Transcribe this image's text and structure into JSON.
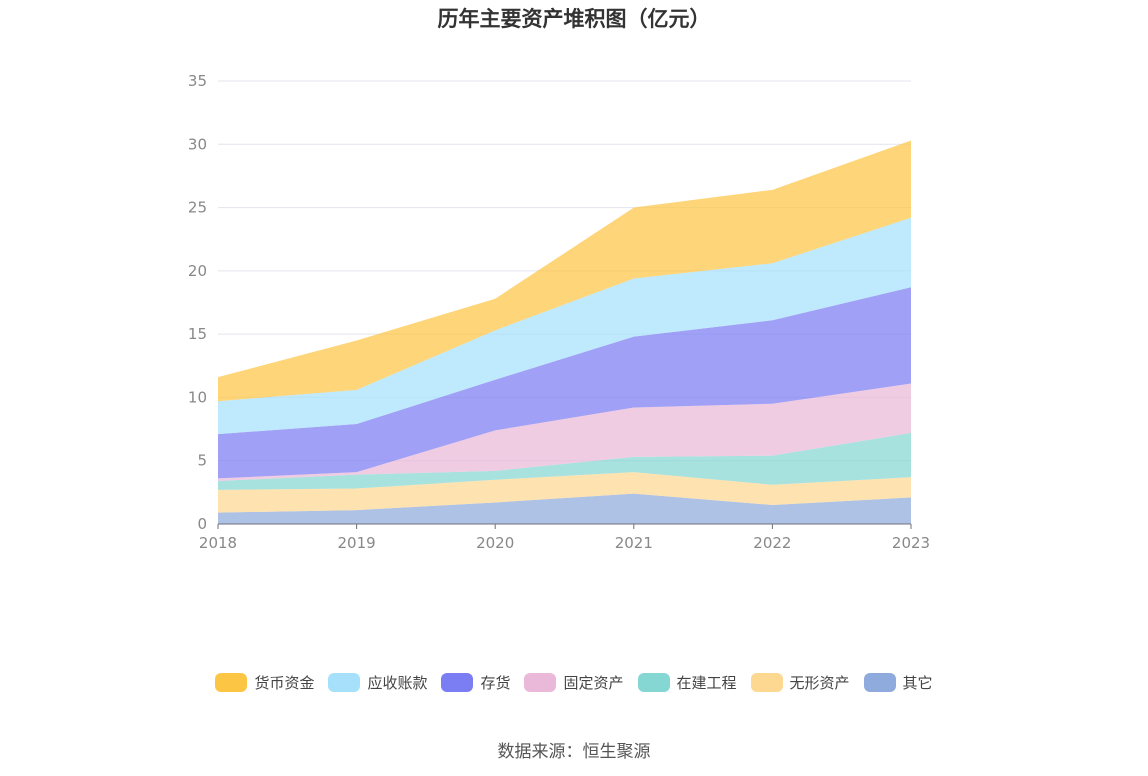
{
  "chart_data": {
    "type": "area",
    "stacked": true,
    "title": "历年主要资产堆积图（亿元）",
    "x": [
      "2018",
      "2019",
      "2020",
      "2021",
      "2022",
      "2023"
    ],
    "ylim": [
      0,
      35
    ],
    "yticks": [
      0,
      5,
      10,
      15,
      20,
      25,
      30,
      35
    ],
    "grid": true,
    "legend_position": "bottom",
    "series": [
      {
        "name": "其它",
        "color": "#8FAADC",
        "values": [
          0.9,
          1.1,
          1.7,
          2.4,
          1.5,
          2.1
        ]
      },
      {
        "name": "无形资产",
        "color": "#FDD891",
        "values": [
          1.8,
          1.7,
          1.8,
          1.7,
          1.6,
          1.6
        ]
      },
      {
        "name": "在建工程",
        "color": "#85D7D3",
        "values": [
          0.7,
          1.1,
          0.7,
          1.2,
          2.3,
          3.5
        ]
      },
      {
        "name": "固定资产",
        "color": "#EAB8D8",
        "values": [
          0.2,
          0.2,
          3.2,
          3.9,
          4.1,
          3.9
        ]
      },
      {
        "name": "存货",
        "color": "#7B7DF3",
        "values": [
          3.5,
          3.8,
          4.0,
          5.6,
          6.6,
          7.6
        ]
      },
      {
        "name": "应收账款",
        "color": "#A6E0FB",
        "values": [
          2.6,
          2.7,
          3.9,
          4.6,
          4.5,
          5.5
        ]
      },
      {
        "name": "货币资金",
        "color": "#FDC544",
        "values": [
          1.9,
          3.9,
          2.5,
          5.6,
          5.8,
          6.1
        ]
      }
    ],
    "legend_order": [
      "货币资金",
      "应收账款",
      "存货",
      "固定资产",
      "在建工程",
      "无形资产",
      "其它"
    ]
  },
  "source": "数据来源：恒生聚源"
}
